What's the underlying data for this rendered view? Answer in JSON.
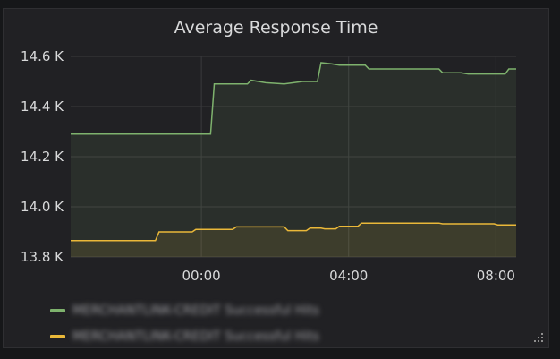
{
  "panel": {
    "title": "Average Response Time"
  },
  "chart_data": {
    "type": "area",
    "title": "Average Response Time",
    "xlabel": "",
    "ylabel": "",
    "y_ticks": [
      "14.6 K",
      "14.4 K",
      "14.2 K",
      "14.0 K",
      "13.8 K"
    ],
    "y_tick_values": [
      14600,
      14400,
      14200,
      14000,
      13800
    ],
    "x_ticks": [
      "00:00",
      "04:00",
      "08:00"
    ],
    "x_tick_values": [
      0,
      4,
      8
    ],
    "ylim": [
      13800,
      14600
    ],
    "xlim": [
      -3.55,
      8.55
    ],
    "grid": true,
    "legend_position": "bottom-left",
    "series": [
      {
        "name": "MERCHANTLINK-CREDIT Successful Hits",
        "color": "#7eb26d",
        "x": [
          -3.55,
          0.25,
          0.35,
          1.25,
          1.35,
          1.55,
          1.75,
          2.25,
          2.75,
          3.15,
          3.25,
          3.55,
          3.75,
          4.45,
          4.55,
          6.45,
          6.55,
          7.05,
          7.25,
          8.25,
          8.35,
          8.55
        ],
        "y": [
          14290,
          14290,
          14490,
          14490,
          14505,
          14500,
          14495,
          14490,
          14500,
          14500,
          14575,
          14570,
          14565,
          14565,
          14550,
          14550,
          14535,
          14535,
          14530,
          14530,
          14550,
          14550
        ]
      },
      {
        "name": "MERCHANTLINK-CREDIT Successful Hits",
        "color": "#eab839",
        "x": [
          -3.55,
          -1.25,
          -1.15,
          -0.25,
          -0.15,
          0.85,
          0.95,
          2.25,
          2.35,
          2.85,
          2.95,
          3.25,
          3.35,
          3.65,
          3.75,
          4.25,
          4.35,
          6.45,
          6.55,
          7.95,
          8.05,
          8.55
        ],
        "y": [
          13865,
          13865,
          13900,
          13900,
          13910,
          13910,
          13920,
          13920,
          13905,
          13905,
          13915,
          13915,
          13912,
          13912,
          13922,
          13922,
          13935,
          13935,
          13932,
          13932,
          13928,
          13928
        ]
      }
    ]
  }
}
